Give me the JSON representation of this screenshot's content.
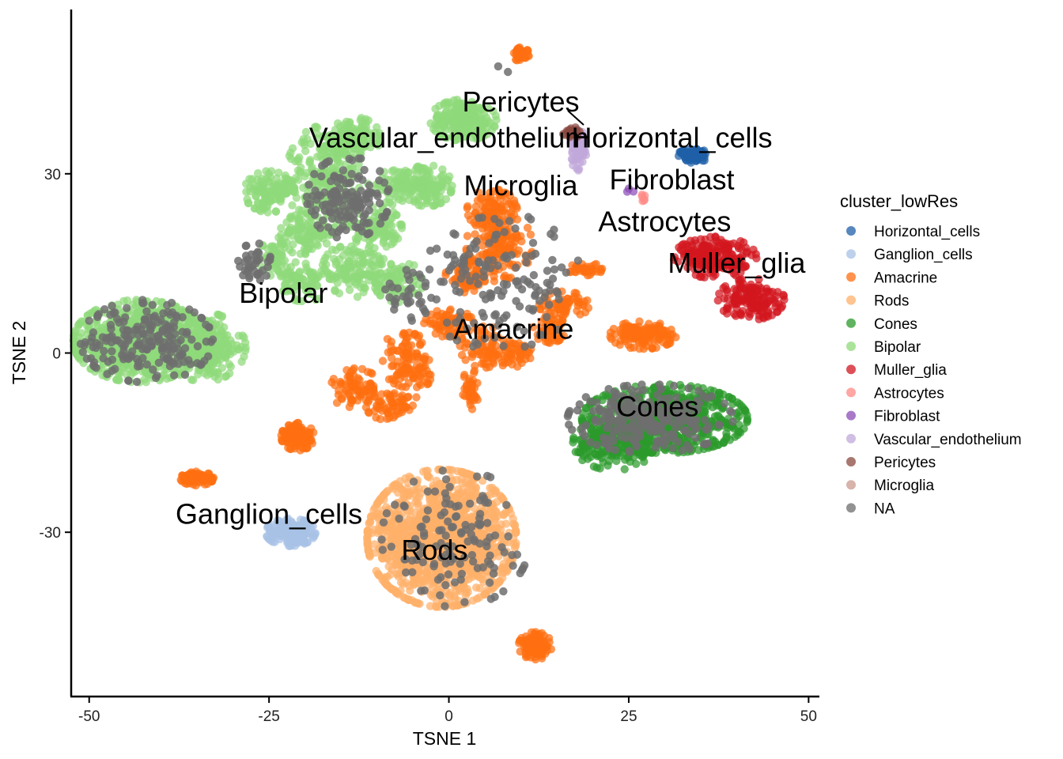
{
  "chart_data": {
    "type": "scatter",
    "xlabel": "TSNE 1",
    "ylabel": "TSNE 2",
    "xlim": [
      -52.5,
      51.5
    ],
    "ylim": [
      -57.5,
      57.5
    ],
    "xticks": [
      -50,
      -25,
      0,
      25,
      50
    ],
    "yticks": [
      -30,
      0,
      30
    ],
    "grid": false,
    "legend": {
      "title": "cluster_lowRes",
      "placement": "right",
      "entries": [
        {
          "name": "Horizontal_cells",
          "color": "#1f5fa8"
        },
        {
          "name": "Ganglion_cells",
          "color": "#a8c2e6"
        },
        {
          "name": "Amacrine",
          "color": "#ff6f11"
        },
        {
          "name": "Rods",
          "color": "#ffb06a"
        },
        {
          "name": "Cones",
          "color": "#2b9a2b"
        },
        {
          "name": "Bipolar",
          "color": "#8fd97a"
        },
        {
          "name": "Muller_glia",
          "color": "#d2161f"
        },
        {
          "name": "Astrocytes",
          "color": "#ff8a86"
        },
        {
          "name": "Fibroblast",
          "color": "#8c4cb7"
        },
        {
          "name": "Vascular_endothelium",
          "color": "#c0a8d9"
        },
        {
          "name": "Pericytes",
          "color": "#8a4a40"
        },
        {
          "name": "Microglia",
          "color": "#c99a8e"
        },
        {
          "name": "NA",
          "color": "#6e6e6e"
        }
      ]
    },
    "clusters": [
      {
        "name": "Bipolar",
        "blobs": [
          {
            "cx": -43,
            "cy": 2,
            "rx": 8,
            "ry": 6,
            "n": 700
          },
          {
            "cx": -34,
            "cy": 1,
            "rx": 5,
            "ry": 5,
            "n": 260
          },
          {
            "cx": -17,
            "cy": 29,
            "rx": 5,
            "ry": 8,
            "n": 280
          },
          {
            "cx": -25,
            "cy": 27,
            "rx": 3,
            "ry": 3,
            "n": 110
          },
          {
            "cx": -20,
            "cy": 20,
            "rx": 3,
            "ry": 3,
            "n": 100
          },
          {
            "cx": -10,
            "cy": 21,
            "rx": 3,
            "ry": 3,
            "n": 100
          },
          {
            "cx": -6,
            "cy": 28,
            "rx": 4,
            "ry": 3,
            "n": 90
          },
          {
            "cx": -3,
            "cy": 28,
            "rx": 3,
            "ry": 3,
            "n": 100
          },
          {
            "cx": -13,
            "cy": 14,
            "rx": 4,
            "ry": 4,
            "n": 130
          },
          {
            "cx": -20,
            "cy": 12,
            "rx": 3,
            "ry": 3,
            "n": 80
          },
          {
            "cx": -7,
            "cy": 12,
            "rx": 3,
            "ry": 3,
            "n": 70
          },
          {
            "cx": 2,
            "cy": 39,
            "rx": 4,
            "ry": 3,
            "n": 240
          },
          {
            "cx": -13,
            "cy": 36,
            "rx": 3,
            "ry": 3,
            "n": 120
          },
          {
            "cx": -24,
            "cy": 16,
            "rx": 2,
            "ry": 3,
            "n": 60
          }
        ]
      },
      {
        "name": "Amacrine",
        "blobs": [
          {
            "cx": 6,
            "cy": 24,
            "rx": 3,
            "ry": 3,
            "n": 90
          },
          {
            "cx": 7,
            "cy": 18,
            "rx": 4,
            "ry": 5,
            "n": 150
          },
          {
            "cx": 3,
            "cy": 13,
            "rx": 3,
            "ry": 3,
            "n": 70
          },
          {
            "cx": 0,
            "cy": 5,
            "rx": 3,
            "ry": 2,
            "n": 70
          },
          {
            "cx": -6,
            "cy": 0,
            "rx": 3,
            "ry": 3,
            "n": 60
          },
          {
            "cx": -13,
            "cy": -6,
            "rx": 3,
            "ry": 3,
            "n": 80
          },
          {
            "cx": -8,
            "cy": -9,
            "rx": 3,
            "ry": 2,
            "n": 60
          },
          {
            "cx": -5,
            "cy": -4,
            "rx": 3,
            "ry": 3,
            "n": 50
          },
          {
            "cx": 5,
            "cy": 1,
            "rx": 3,
            "ry": 3,
            "n": 70
          },
          {
            "cx": 9,
            "cy": 0,
            "rx": 3,
            "ry": 2,
            "n": 50
          },
          {
            "cx": 16,
            "cy": 8,
            "rx": 3,
            "ry": 2,
            "n": 60
          },
          {
            "cx": 27,
            "cy": 3,
            "rx": 4,
            "ry": 2,
            "n": 130
          },
          {
            "cx": 14,
            "cy": 4,
            "rx": 2,
            "ry": 2,
            "n": 50
          },
          {
            "cx": 3,
            "cy": -6,
            "rx": 1,
            "ry": 3,
            "n": 40
          },
          {
            "cx": 19,
            "cy": 14,
            "rx": 2,
            "ry": 1,
            "n": 40
          },
          {
            "cx": -21,
            "cy": -14,
            "rx": 2,
            "ry": 2,
            "n": 120
          },
          {
            "cx": -35,
            "cy": -21,
            "rx": 2,
            "ry": 1,
            "n": 90
          },
          {
            "cx": 10,
            "cy": 50,
            "rx": 1,
            "ry": 1,
            "n": 40
          },
          {
            "cx": 12,
            "cy": -49,
            "rx": 2,
            "ry": 2,
            "n": 100
          }
        ]
      },
      {
        "name": "Rods",
        "blobs": [
          {
            "cx": -1,
            "cy": -31,
            "rx": 9,
            "ry": 10,
            "n": 1300
          }
        ]
      },
      {
        "name": "Cones",
        "blobs": [
          {
            "cx": 30,
            "cy": -11,
            "rx": 10,
            "ry": 5,
            "n": 650
          },
          {
            "cx": 23,
            "cy": -15,
            "rx": 5,
            "ry": 4,
            "n": 200
          }
        ]
      },
      {
        "name": "Muller_glia",
        "blobs": [
          {
            "cx": 37,
            "cy": 16,
            "rx": 5,
            "ry": 3,
            "n": 200
          },
          {
            "cx": 42,
            "cy": 9,
            "rx": 4,
            "ry": 3,
            "n": 150
          }
        ]
      },
      {
        "name": "Ganglion_cells",
        "blobs": [
          {
            "cx": -22,
            "cy": -30,
            "rx": 3,
            "ry": 2,
            "n": 160
          }
        ]
      },
      {
        "name": "Horizontal_cells",
        "blobs": [
          {
            "cx": 34,
            "cy": 33,
            "rx": 2,
            "ry": 1,
            "n": 80
          }
        ]
      },
      {
        "name": "Vascular_endothelium",
        "blobs": [
          {
            "cx": 18,
            "cy": 34,
            "rx": 1,
            "ry": 3,
            "n": 70
          }
        ]
      },
      {
        "name": "Pericytes",
        "blobs": [
          {
            "cx": 17,
            "cy": 37,
            "rx": 1,
            "ry": 1,
            "n": 25
          }
        ]
      },
      {
        "name": "Astrocytes",
        "blobs": [
          {
            "cx": 27,
            "cy": 26,
            "rx": 1,
            "ry": 1,
            "n": 6
          }
        ]
      },
      {
        "name": "Fibroblast",
        "blobs": [
          {
            "cx": 25,
            "cy": 27,
            "rx": 1,
            "ry": 1,
            "n": 3
          }
        ]
      },
      {
        "name": "NA",
        "blobs": [
          {
            "cx": -42,
            "cy": 2,
            "rx": 8,
            "ry": 6,
            "n": 200
          },
          {
            "cx": -14,
            "cy": 26,
            "rx": 5,
            "ry": 6,
            "n": 150
          },
          {
            "cx": -27,
            "cy": 15,
            "rx": 2,
            "ry": 3,
            "n": 40
          },
          {
            "cx": 1,
            "cy": -31,
            "rx": 9,
            "ry": 10,
            "n": 130
          },
          {
            "cx": 28,
            "cy": -11,
            "rx": 10,
            "ry": 5,
            "n": 250
          },
          {
            "cx": 7,
            "cy": 12,
            "rx": 10,
            "ry": 10,
            "n": 150
          },
          {
            "cx": -5,
            "cy": 10,
            "rx": 4,
            "ry": 4,
            "n": 30
          },
          {
            "cx": 8,
            "cy": 48,
            "rx": 1,
            "ry": 1,
            "n": 2
          }
        ]
      }
    ],
    "labels": [
      {
        "text": "Pericytes",
        "x": 10,
        "y": 42
      },
      {
        "text": "Vascular_endothelium",
        "x": 0,
        "y": 36
      },
      {
        "text": "Horizontal_cells",
        "x": 31,
        "y": 36
      },
      {
        "text": "Microglia",
        "x": 10,
        "y": 28
      },
      {
        "text": "Fibroblast",
        "x": 31,
        "y": 29
      },
      {
        "text": "Astrocytes",
        "x": 30,
        "y": 22
      },
      {
        "text": "Muller_glia",
        "x": 40,
        "y": 15
      },
      {
        "text": "Bipolar",
        "x": -23,
        "y": 10
      },
      {
        "text": "Amacrine",
        "x": 9,
        "y": 4
      },
      {
        "text": "Cones",
        "x": 29,
        "y": -9
      },
      {
        "text": "Ganglion_cells",
        "x": -25,
        "y": -27
      },
      {
        "text": "Rods",
        "x": -2,
        "y": -33
      }
    ]
  }
}
